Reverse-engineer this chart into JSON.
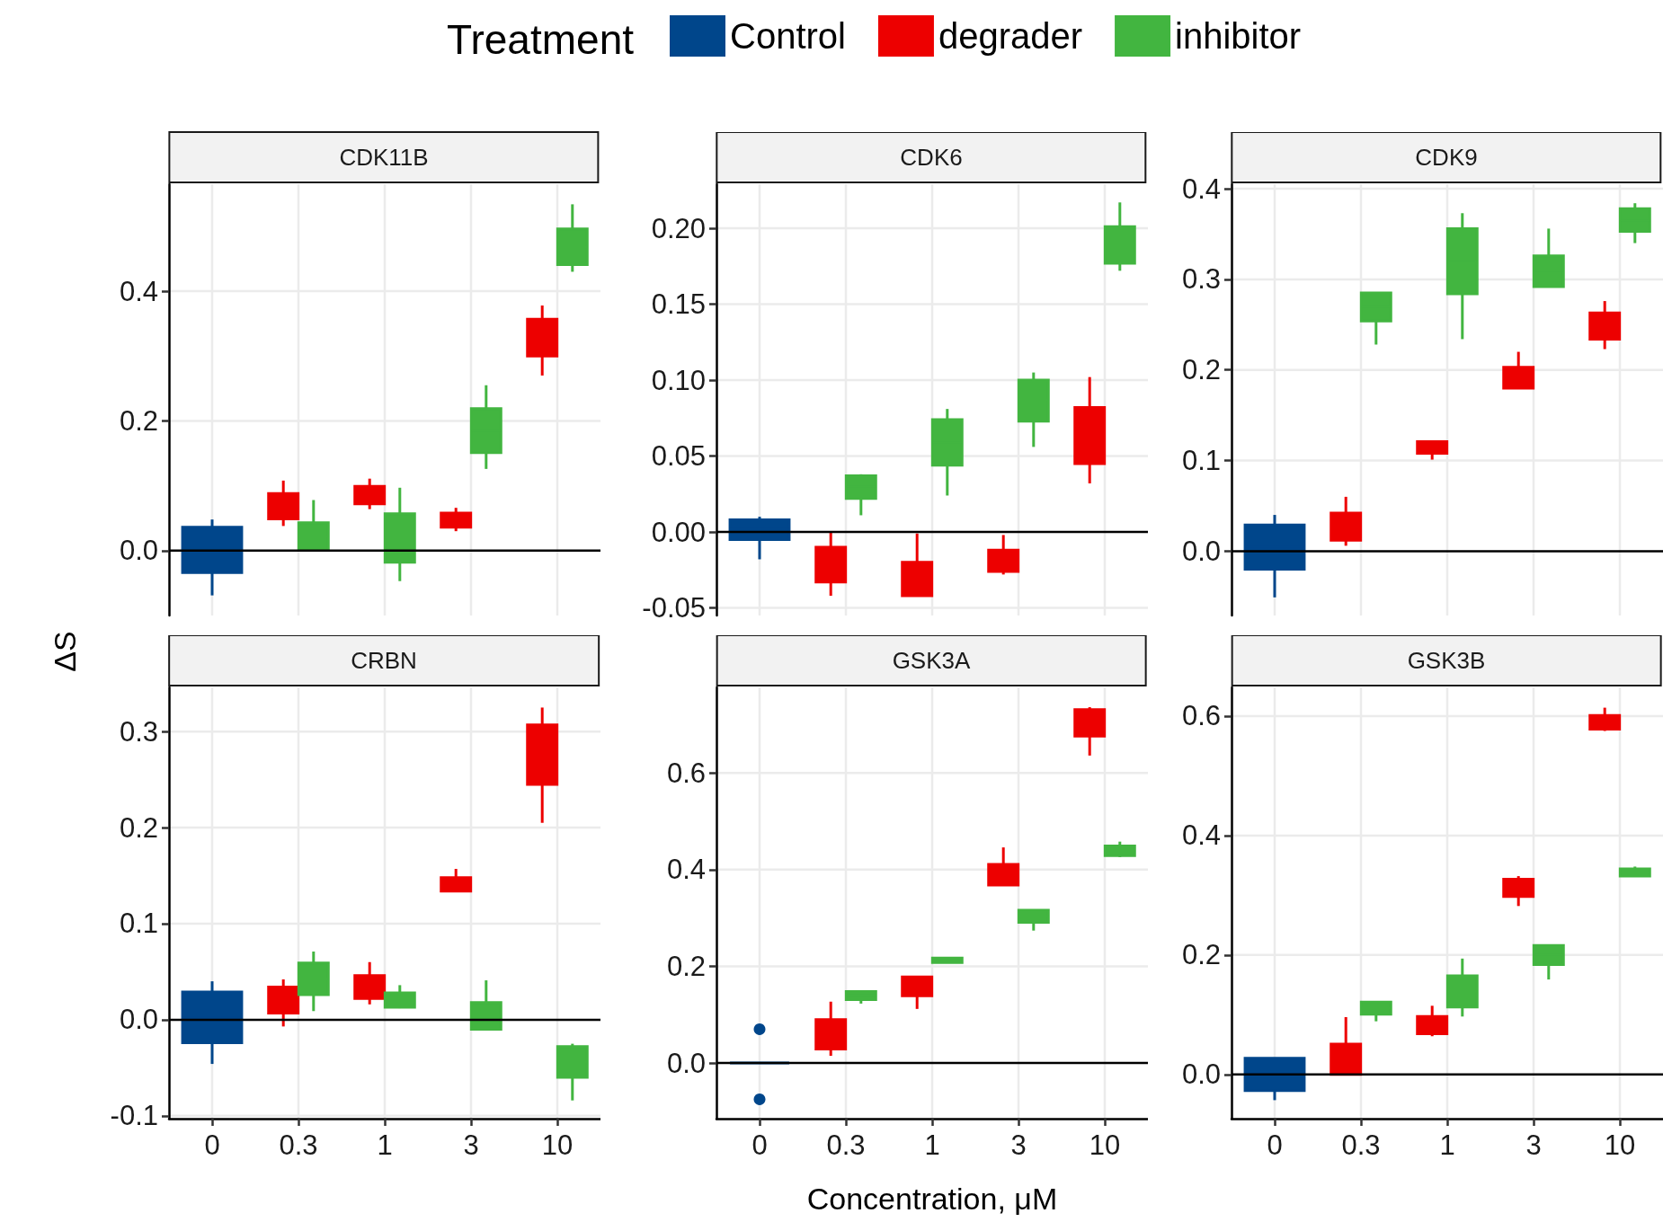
{
  "chart_data": [
    {
      "type": "box",
      "title": "CDK11B",
      "legend": "top",
      "legend_title": "Treatment",
      "ylabel": "ΔS",
      "categories": [
        "0",
        "0.3",
        "1",
        "3",
        "10"
      ],
      "grid": true,
      "tick_labels": "y",
      "ylim": [
        -0.1,
        0.565
      ],
      "yticks": [
        {
          "value": 0,
          "label": "0.0"
        },
        0.2,
        0.4
      ],
      "ref_lines": [
        {
          "axis": "y",
          "value": 0
        }
      ],
      "series": [
        {
          "name": "Control",
          "color": "#00468b",
          "boxes": [
            {
              "low": -0.069,
              "q1": -0.034,
              "median": 0.001,
              "q3": 0.036,
              "high": 0.048
            },
            null,
            null,
            null,
            null
          ]
        },
        {
          "name": "degrader",
          "color": "#ed0000",
          "boxes": [
            null,
            {
              "low": 0.038,
              "q1": 0.049,
              "median": 0.068,
              "q3": 0.088,
              "high": 0.108
            },
            {
              "low": 0.064,
              "q1": 0.072,
              "median": 0.085,
              "q3": 0.099,
              "high": 0.111
            },
            {
              "low": 0.03,
              "q1": 0.036,
              "median": 0.047,
              "q3": 0.058,
              "high": 0.066
            },
            {
              "low": 0.27,
              "q1": 0.3,
              "median": 0.328,
              "q3": 0.357,
              "high": 0.378
            }
          ]
        },
        {
          "name": "inhibitor",
          "color": "#42b540",
          "boxes": [
            null,
            {
              "low": 0.0,
              "q1": 0.001,
              "median": 0.022,
              "q3": 0.043,
              "high": 0.078
            },
            {
              "low": -0.047,
              "q1": -0.018,
              "median": 0.02,
              "q3": 0.057,
              "high": 0.097
            },
            {
              "low": 0.126,
              "q1": 0.151,
              "median": 0.185,
              "q3": 0.219,
              "high": 0.255
            },
            {
              "low": 0.43,
              "q1": 0.441,
              "median": 0.468,
              "q3": 0.496,
              "high": 0.534
            }
          ]
        }
      ]
    },
    {
      "type": "box",
      "title": "CDK6",
      "categories": [
        "0",
        "0.3",
        "1",
        "3",
        "10"
      ],
      "grid": true,
      "tick_labels": "y",
      "ylim": [
        -0.055,
        0.229
      ],
      "yticks": [
        {
          "value": -0.05,
          "label": "-0.05"
        },
        {
          "value": 0,
          "label": "0.00"
        },
        0.05,
        {
          "value": 0.1,
          "label": "0.10"
        },
        0.15,
        {
          "value": 0.2,
          "label": "0.20"
        }
      ],
      "ref_lines": [
        {
          "axis": "y",
          "value": 0
        }
      ],
      "series": [
        {
          "color": "#00468b",
          "boxes": [
            {
              "low": -0.018,
              "q1": -0.005,
              "median": 0.002,
              "q3": 0.008,
              "high": 0.01
            },
            null,
            null,
            null,
            null
          ]
        },
        {
          "color": "#ed0000",
          "boxes": [
            null,
            {
              "low": -0.042,
              "q1": -0.033,
              "median": -0.022,
              "q3": -0.01,
              "high": 0.0
            },
            {
              "low": -0.042,
              "q1": -0.042,
              "median": -0.031,
              "q3": -0.02,
              "high": -0.001
            },
            {
              "low": -0.028,
              "q1": -0.026,
              "median": -0.019,
              "q3": -0.012,
              "high": -0.002
            },
            {
              "low": 0.032,
              "q1": 0.045,
              "median": 0.064,
              "q3": 0.082,
              "high": 0.102
            }
          ]
        },
        {
          "color": "#42b540",
          "boxes": [
            null,
            {
              "low": 0.011,
              "q1": 0.022,
              "median": 0.03,
              "q3": 0.037,
              "high": 0.038
            },
            {
              "low": 0.024,
              "q1": 0.044,
              "median": 0.059,
              "q3": 0.074,
              "high": 0.081
            },
            {
              "low": 0.056,
              "q1": 0.073,
              "median": 0.087,
              "q3": 0.1,
              "high": 0.105
            },
            {
              "low": 0.172,
              "q1": 0.177,
              "median": 0.189,
              "q3": 0.201,
              "high": 0.217
            }
          ]
        }
      ]
    },
    {
      "type": "box",
      "title": "CDK9",
      "categories": [
        "0",
        "0.3",
        "1",
        "3",
        "10"
      ],
      "grid": true,
      "tick_labels": "y",
      "ylim": [
        -0.071,
        0.405
      ],
      "yticks": [
        {
          "value": 0,
          "label": "0.0"
        },
        0.1,
        0.2,
        0.3,
        0.4
      ],
      "ref_lines": [
        {
          "axis": "y",
          "value": 0
        }
      ],
      "series": [
        {
          "color": "#00468b",
          "boxes": [
            {
              "low": -0.051,
              "q1": -0.02,
              "median": 0.005,
              "q3": 0.029,
              "high": 0.04
            },
            null,
            null,
            null,
            null
          ]
        },
        {
          "color": "#ed0000",
          "boxes": [
            null,
            {
              "low": 0.006,
              "q1": 0.012,
              "median": 0.027,
              "q3": 0.042,
              "high": 0.06
            },
            {
              "low": 0.101,
              "q1": 0.108,
              "median": 0.115,
              "q3": 0.121,
              "high": 0.122
            },
            {
              "low": 0.18,
              "q1": 0.18,
              "median": 0.191,
              "q3": 0.203,
              "high": 0.22
            },
            {
              "low": 0.223,
              "q1": 0.234,
              "median": 0.248,
              "q3": 0.263,
              "high": 0.276
            }
          ]
        },
        {
          "color": "#42b540",
          "boxes": [
            null,
            {
              "low": 0.228,
              "q1": 0.254,
              "median": 0.27,
              "q3": 0.285,
              "high": 0.286
            },
            {
              "low": 0.234,
              "q1": 0.284,
              "median": 0.32,
              "q3": 0.356,
              "high": 0.373
            },
            {
              "low": 0.292,
              "q1": 0.292,
              "median": 0.309,
              "q3": 0.326,
              "high": 0.356
            },
            {
              "low": 0.34,
              "q1": 0.353,
              "median": 0.365,
              "q3": 0.378,
              "high": 0.384
            }
          ]
        }
      ]
    },
    {
      "type": "box",
      "title": "CRBN",
      "categories": [
        "0",
        "0.3",
        "1",
        "3",
        "10"
      ],
      "grid": true,
      "ylim": [
        -0.103,
        0.346
      ],
      "yticks": [
        -0.1,
        {
          "value": 0,
          "label": "0.0"
        },
        0.1,
        0.2,
        0.3
      ],
      "ref_lines": [
        {
          "axis": "y",
          "value": 0
        }
      ],
      "series": [
        {
          "color": "#00468b",
          "boxes": [
            {
              "low": -0.046,
              "q1": -0.024,
              "median": 0.002,
              "q3": 0.029,
              "high": 0.04
            },
            null,
            null,
            null,
            null
          ]
        },
        {
          "color": "#ed0000",
          "boxes": [
            null,
            {
              "low": -0.007,
              "q1": 0.007,
              "median": 0.02,
              "q3": 0.034,
              "high": 0.042
            },
            {
              "low": 0.016,
              "q1": 0.022,
              "median": 0.034,
              "q3": 0.046,
              "high": 0.06
            },
            {
              "low": 0.134,
              "q1": 0.134,
              "median": 0.141,
              "q3": 0.148,
              "high": 0.157
            },
            {
              "low": 0.205,
              "q1": 0.245,
              "median": 0.276,
              "q3": 0.307,
              "high": 0.325
            }
          ]
        },
        {
          "color": "#42b540",
          "boxes": [
            null,
            {
              "low": 0.009,
              "q1": 0.026,
              "median": 0.042,
              "q3": 0.059,
              "high": 0.071
            },
            {
              "low": 0.012,
              "q1": 0.013,
              "median": 0.02,
              "q3": 0.028,
              "high": 0.036
            },
            {
              "low": -0.01,
              "q1": -0.01,
              "median": 0.004,
              "q3": 0.018,
              "high": 0.041
            },
            {
              "low": -0.084,
              "q1": -0.06,
              "median": -0.044,
              "q3": -0.028,
              "high": -0.025
            }
          ]
        }
      ]
    },
    {
      "type": "box",
      "title": "GSK3A",
      "xlabel": "Concentration, μM",
      "categories": [
        "0",
        "0.3",
        "1",
        "3",
        "10"
      ],
      "grid": true,
      "ylim": [
        -0.115,
        0.777
      ],
      "yticks": [
        {
          "value": 0,
          "label": "0.0"
        },
        0.2,
        0.4,
        0.6
      ],
      "ref_lines": [
        {
          "axis": "y",
          "value": 0
        }
      ],
      "series": [
        {
          "color": "#00468b",
          "boxes": [
            {
              "low": 0,
              "q1": 0,
              "median": 0,
              "q3": 0,
              "high": 0,
              "outliers": [
                0.07,
                -0.075
              ]
            },
            null,
            null,
            null,
            null
          ]
        },
        {
          "color": "#ed0000",
          "boxes": [
            null,
            {
              "low": 0.015,
              "q1": 0.029,
              "median": 0.06,
              "q3": 0.09,
              "high": 0.127
            },
            {
              "low": 0.112,
              "q1": 0.139,
              "median": 0.158,
              "q3": 0.178,
              "high": 0.179
            },
            {
              "low": 0.368,
              "q1": 0.368,
              "median": 0.39,
              "q3": 0.411,
              "high": 0.446
            },
            {
              "low": 0.636,
              "q1": 0.676,
              "median": 0.704,
              "q3": 0.731,
              "high": 0.736
            }
          ]
        },
        {
          "color": "#42b540",
          "boxes": [
            null,
            {
              "low": 0.123,
              "q1": 0.131,
              "median": 0.14,
              "q3": 0.148,
              "high": 0.149
            },
            {
              "low": 0.207,
              "q1": 0.208,
              "median": 0.212,
              "q3": 0.217,
              "high": 0.218
            },
            {
              "low": 0.274,
              "q1": 0.291,
              "median": 0.304,
              "q3": 0.316,
              "high": 0.317
            },
            {
              "low": 0.426,
              "q1": 0.429,
              "median": 0.439,
              "q3": 0.449,
              "high": 0.458
            }
          ]
        }
      ]
    },
    {
      "type": "box",
      "title": "GSK3B",
      "categories": [
        "0",
        "0.3",
        "1",
        "3",
        "10"
      ],
      "grid": true,
      "ylim": [
        -0.074,
        0.648
      ],
      "yticks": [
        {
          "value": 0,
          "label": "0.0"
        },
        0.2,
        0.4,
        0.6
      ],
      "ref_lines": [
        {
          "axis": "y",
          "value": 0
        }
      ],
      "series": [
        {
          "color": "#00468b",
          "boxes": [
            {
              "low": -0.043,
              "q1": -0.027,
              "median": 0.0,
              "q3": 0.027,
              "high": 0.027
            },
            null,
            null,
            null,
            null
          ]
        },
        {
          "color": "#ed0000",
          "boxes": [
            null,
            {
              "low": 0.0,
              "q1": 0.0,
              "median": 0.025,
              "q3": 0.051,
              "high": 0.096
            },
            {
              "low": 0.064,
              "q1": 0.068,
              "median": 0.082,
              "q3": 0.097,
              "high": 0.115
            },
            {
              "low": 0.282,
              "q1": 0.298,
              "median": 0.312,
              "q3": 0.327,
              "high": 0.332
            },
            {
              "low": 0.575,
              "q1": 0.578,
              "median": 0.59,
              "q3": 0.601,
              "high": 0.614
            }
          ]
        },
        {
          "color": "#42b540",
          "boxes": [
            null,
            {
              "low": 0.089,
              "q1": 0.101,
              "median": 0.111,
              "q3": 0.121,
              "high": 0.123
            },
            {
              "low": 0.097,
              "q1": 0.113,
              "median": 0.139,
              "q3": 0.165,
              "high": 0.194
            },
            {
              "low": 0.159,
              "q1": 0.184,
              "median": 0.2,
              "q3": 0.216,
              "high": 0.216
            },
            {
              "low": 0.332,
              "q1": 0.332,
              "median": 0.338,
              "q3": 0.344,
              "high": 0.348
            }
          ]
        }
      ]
    }
  ]
}
